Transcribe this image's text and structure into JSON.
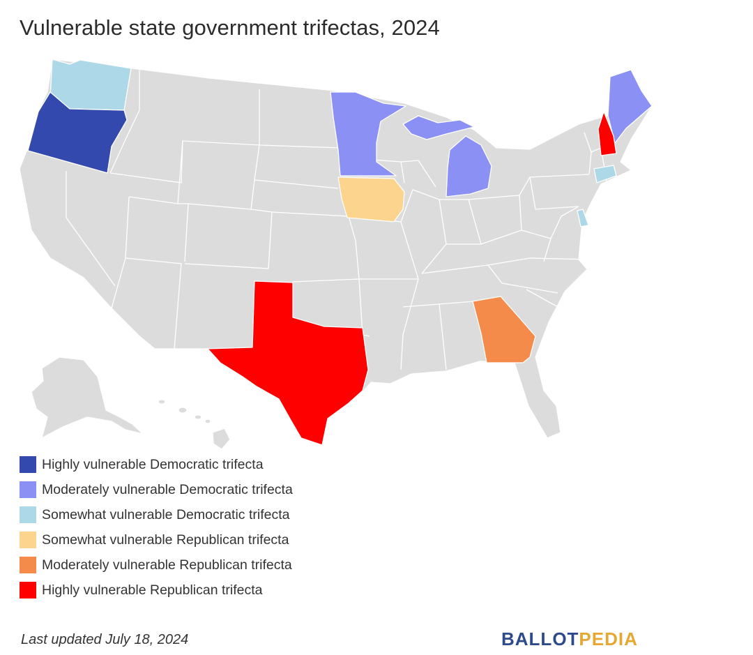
{
  "title": "Vulnerable state government trifectas, 2024",
  "map": {
    "region": "United States",
    "default_color": "#dcdcdc",
    "border_color": "#ffffff",
    "states": [
      {
        "name": "Oregon",
        "category": "Highly vulnerable Democratic trifecta",
        "color": "#3349ad"
      },
      {
        "name": "Minnesota",
        "category": "Moderately vulnerable Democratic trifecta",
        "color": "#8b90f5"
      },
      {
        "name": "Michigan",
        "category": "Moderately vulnerable Democratic trifecta",
        "color": "#8b90f5"
      },
      {
        "name": "Maine",
        "category": "Moderately vulnerable Democratic trifecta",
        "color": "#8b90f5"
      },
      {
        "name": "Washington",
        "category": "Somewhat vulnerable Democratic trifecta",
        "color": "#add8e8"
      },
      {
        "name": "Connecticut",
        "category": "Somewhat vulnerable Democratic trifecta",
        "color": "#add8e8"
      },
      {
        "name": "Delaware",
        "category": "Somewhat vulnerable Democratic trifecta",
        "color": "#add8e8"
      },
      {
        "name": "Iowa",
        "category": "Somewhat vulnerable Republican trifecta",
        "color": "#fdd48d"
      },
      {
        "name": "Georgia",
        "category": "Moderately vulnerable Republican trifecta",
        "color": "#f58b4a"
      },
      {
        "name": "Texas",
        "category": "Highly vulnerable Republican trifecta",
        "color": "#fe0000"
      },
      {
        "name": "New Hampshire",
        "category": "Highly vulnerable Republican trifecta",
        "color": "#fe0000"
      }
    ]
  },
  "legend": [
    {
      "label": "Highly vulnerable Democratic trifecta",
      "color": "#3349ad"
    },
    {
      "label": "Moderately vulnerable Democratic trifecta",
      "color": "#8b90f5"
    },
    {
      "label": "Somewhat vulnerable Democratic trifecta",
      "color": "#add8e8"
    },
    {
      "label": "Somewhat vulnerable Republican trifecta",
      "color": "#fdd48d"
    },
    {
      "label": "Moderately vulnerable Republican trifecta",
      "color": "#f58b4a"
    },
    {
      "label": "Highly vulnerable Republican trifecta",
      "color": "#fe0000"
    }
  ],
  "footer": {
    "last_updated": "Last updated July 18, 2024",
    "brand_part1": "BALLOT",
    "brand_part2": "PEDIA",
    "brand_color1": "#2d4a8c",
    "brand_color2": "#e5a832"
  }
}
